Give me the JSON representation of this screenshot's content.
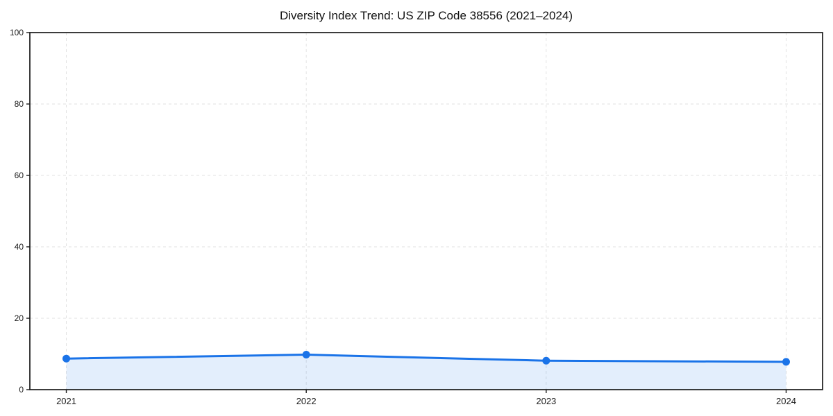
{
  "chart_data": {
    "type": "line",
    "title": "Diversity Index Trend: US ZIP Code 38556 (2021–2024)",
    "x": [
      2021,
      2022,
      2023,
      2024
    ],
    "xtick_labels": [
      "2021",
      "2022",
      "2023",
      "2024"
    ],
    "series": [
      {
        "name": "Diversity Index",
        "values": [
          8.7,
          9.8,
          8.1,
          7.8
        ]
      }
    ],
    "xlabel": "",
    "ylabel": "",
    "ylim": [
      0,
      100
    ],
    "yticks": [
      0,
      20,
      40,
      60,
      80,
      100
    ],
    "grid": true,
    "grid_style": "dashed",
    "legend_position": "none",
    "colors": {
      "line": "#1a73e8",
      "marker": "#1a73e8",
      "area_fill": "rgba(26,115,232,0.12)",
      "grid": "#e2e2e2",
      "axis": "#1a1a1a",
      "text": "#1a1a1a",
      "background": "#ffffff"
    },
    "marker": "circle"
  }
}
